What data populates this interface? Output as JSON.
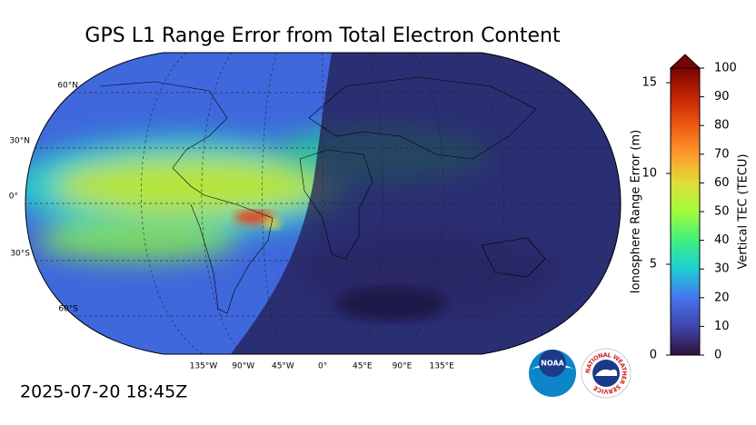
{
  "title": "GPS L1 Range Error from Total Electron Content",
  "timestamp": "2025-07-20 18:45Z",
  "map": {
    "lat_labels": [
      "60°N",
      "30°N",
      "0°",
      "30°S",
      "60°S"
    ],
    "lon_labels": [
      "135°W",
      "90°W",
      "45°W",
      "0°",
      "45°E",
      "90°E",
      "135°E"
    ]
  },
  "colorbar": {
    "tec_label": "Vertical TEC (TECU)",
    "tec_lim": [
      0,
      100
    ],
    "tec_ticks": [
      0,
      10,
      20,
      30,
      40,
      50,
      60,
      70,
      80,
      90,
      100
    ],
    "range_label": "Ionosphere Range Error (m)",
    "range_lim": [
      0,
      15.8
    ],
    "range_ticks": [
      0,
      5,
      10,
      15
    ]
  },
  "logos": {
    "noaa": "NOAA",
    "nws": "NATIONAL WEATHER SERVICE"
  }
}
